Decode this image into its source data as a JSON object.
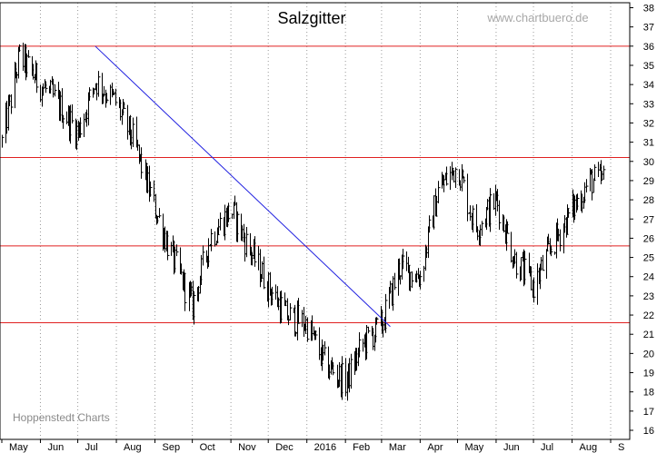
{
  "chart_data": {
    "type": "line",
    "title": "Salzgitter",
    "watermark": "www.chartbuero.de",
    "credit": "Hoppenstedt Charts",
    "xlabel": "",
    "ylabel": "",
    "ylim": [
      16,
      38
    ],
    "y_ticks": [
      16,
      17,
      18,
      19,
      20,
      21,
      22,
      23,
      24,
      25,
      26,
      27,
      28,
      29,
      30,
      31,
      32,
      33,
      34,
      35,
      36,
      37,
      38
    ],
    "x_tick_labels": [
      "May",
      "Jun",
      "Jul",
      "Aug",
      "Sep",
      "Oct",
      "Nov",
      "Dec",
      "2016",
      "Feb",
      "Mar",
      "Apr",
      "May",
      "Jun",
      "Jul",
      "Aug",
      "S"
    ],
    "grid": "vertical dotted lines at each month",
    "series": [
      {
        "style": "daily high-low bars",
        "x": [
          "2015-05-01",
          "2015-05-15",
          "2015-06-01",
          "2015-06-15",
          "2015-07-01",
          "2015-07-15",
          "2015-08-01",
          "2015-08-15",
          "2015-09-01",
          "2015-09-15",
          "2015-10-01",
          "2015-10-15",
          "2015-11-01",
          "2015-11-15",
          "2015-12-01",
          "2015-12-15",
          "2016-01-01",
          "2016-01-15",
          "2016-02-01",
          "2016-02-15",
          "2016-03-01",
          "2016-03-15",
          "2016-04-01",
          "2016-04-15",
          "2016-05-01",
          "2016-05-15",
          "2016-06-01",
          "2016-06-15",
          "2016-07-01",
          "2016-07-15",
          "2016-08-01",
          "2016-08-15"
        ],
        "values": [
          31.0,
          35.5,
          34.0,
          33.0,
          31.5,
          34.2,
          33.0,
          31.0,
          27.5,
          25.0,
          22.5,
          26.0,
          27.5,
          25.5,
          23.5,
          22.0,
          21.5,
          19.5,
          18.5,
          20.5,
          21.5,
          24.5,
          24.0,
          28.5,
          29.8,
          26.5,
          28.0,
          25.0,
          23.5,
          25.5,
          27.5,
          29.0
        ]
      }
    ],
    "annotations": [
      {
        "type": "horizontal support/resistance line",
        "color": "#e02020",
        "y": 36
      },
      {
        "type": "horizontal support/resistance line",
        "color": "#e02020",
        "y": 30.2
      },
      {
        "type": "horizontal support/resistance line",
        "color": "#e02020",
        "y": 25.6
      },
      {
        "type": "horizontal support/resistance line",
        "color": "#e02020",
        "y": 21.6
      },
      {
        "type": "downtrend line",
        "color": "#2020e0",
        "from": [
          "2015-07-15",
          36.0
        ],
        "to": [
          "2016-03-08",
          21.4
        ]
      }
    ],
    "colors": {
      "bars": "#000000",
      "support": "#e02020",
      "trend": "#2020e0",
      "grid": "#9a9a9a"
    }
  }
}
